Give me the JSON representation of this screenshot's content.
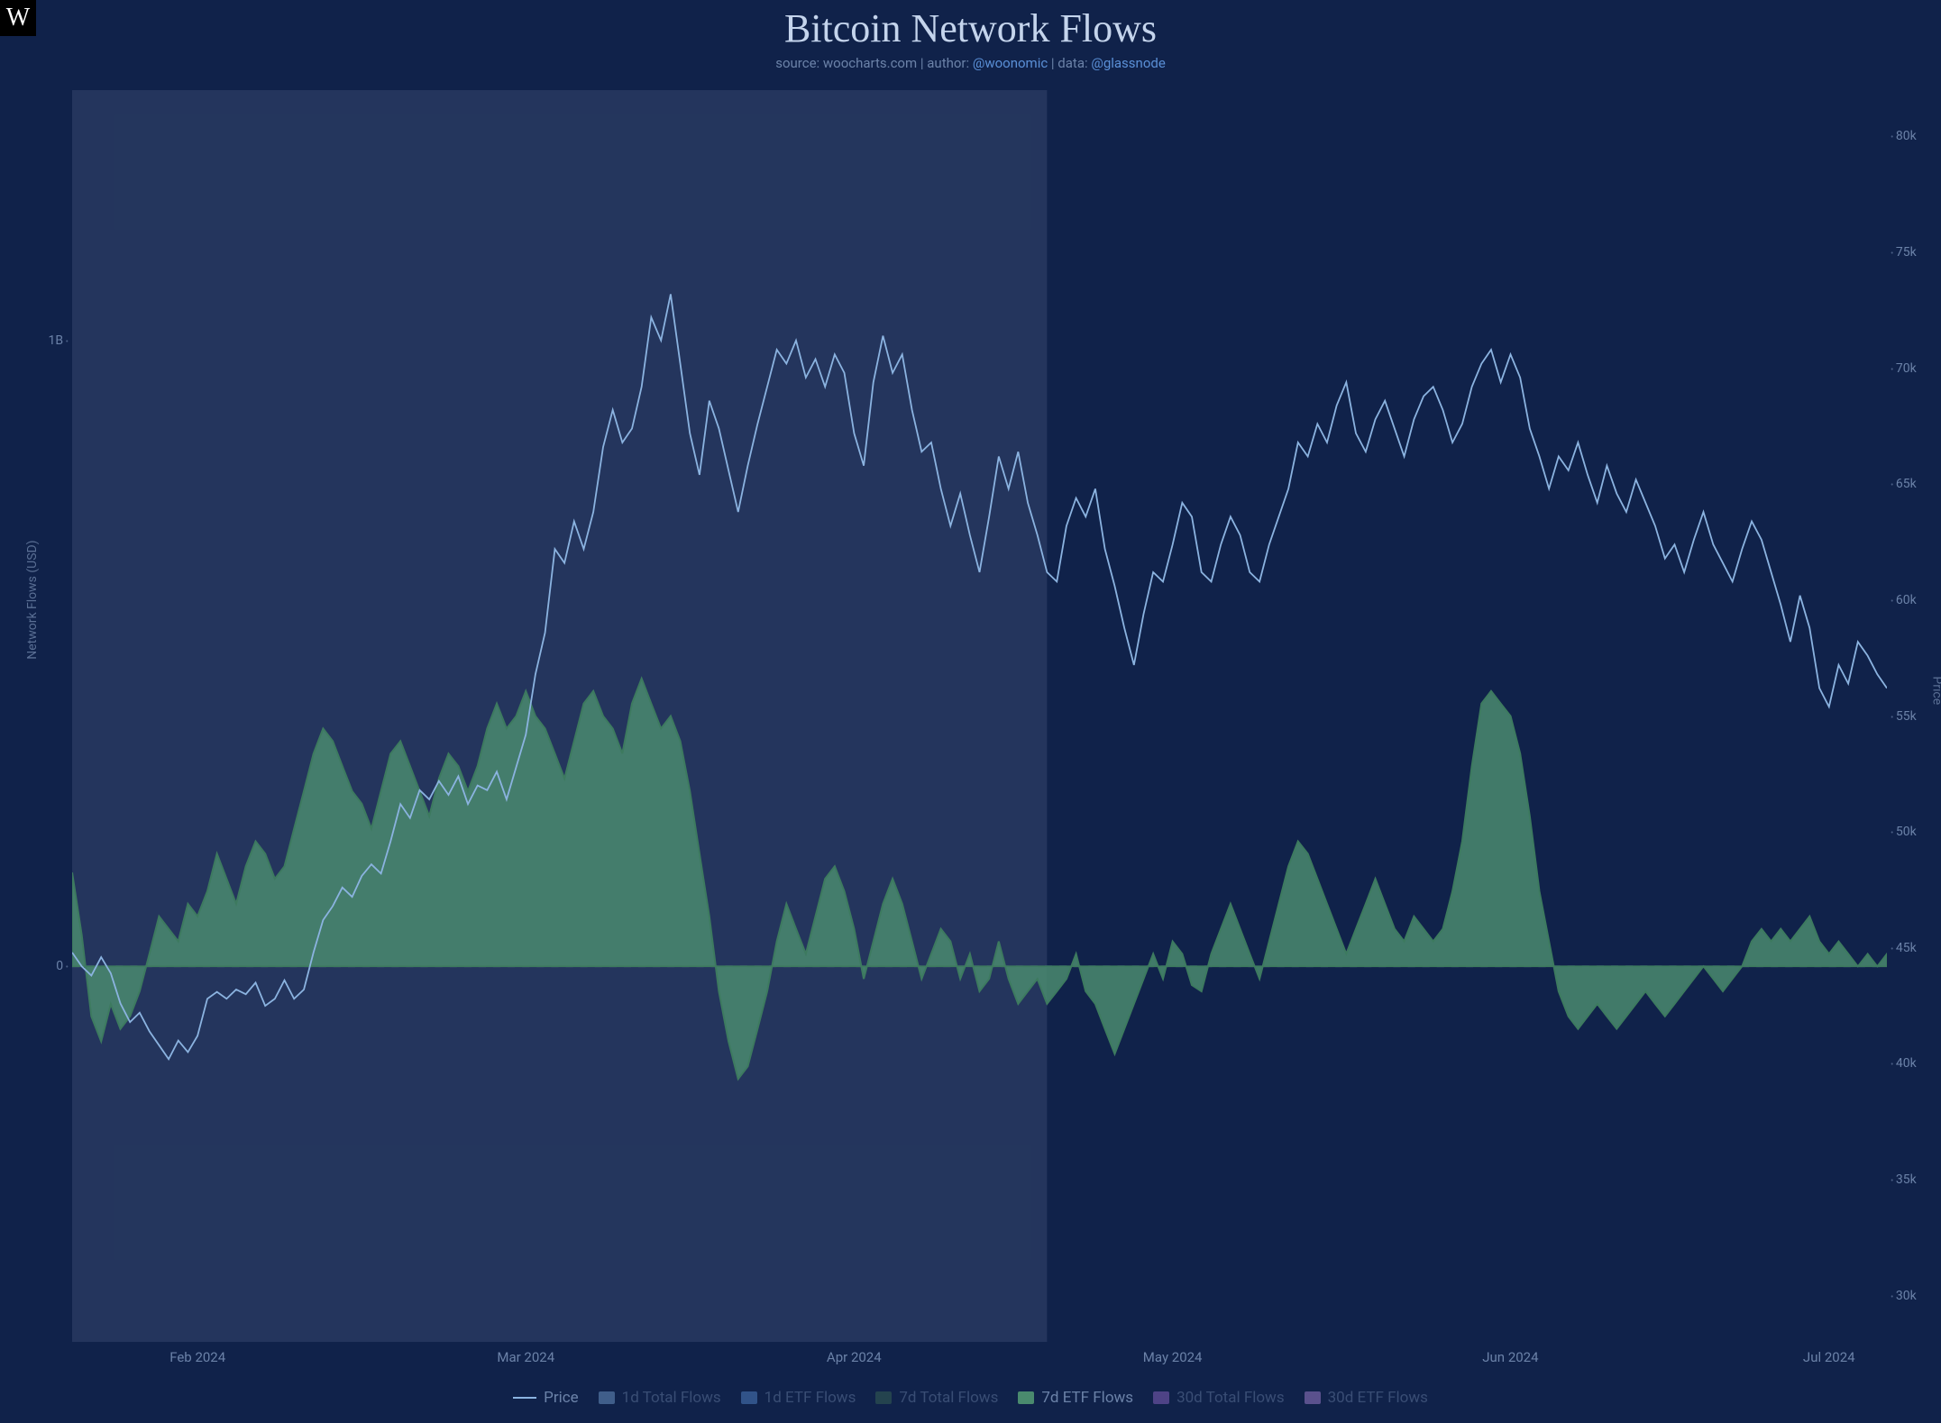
{
  "title": "Bitcoin Network Flows",
  "subtitle": {
    "source_label": "source: ",
    "source_value": "woocharts.com",
    "author_label": " | author: ",
    "author_value": "@woonomic",
    "data_label": " | data: ",
    "data_value": "@glassnode"
  },
  "logo_text": "W",
  "y_left_axis_label": "Network Flows (USD)",
  "y_right_axis_label": "Price",
  "colors": {
    "background": "#10224a",
    "selection_overlay": "rgba(180,200,230,0.12)",
    "price_line": "#8bb3e0",
    "area_fill": "#4a8a6e",
    "area_stroke": "#3d7a5f",
    "zero_line": "#5a6f94",
    "tick_text": "#6b82a8",
    "title_text": "#c4d4ec",
    "link": "#5a8fd6",
    "legend_dimmed": "#4a5f85",
    "purple": "#9a6dd0"
  },
  "typography": {
    "title_fontsize": 44,
    "subtitle_fontsize": 15,
    "tick_fontsize": 14,
    "legend_fontsize": 17,
    "title_family": "serif"
  },
  "selection": {
    "start_pct": 0.0,
    "end_pct": 50.5
  },
  "x_axis": {
    "ticks": [
      {
        "label": "Feb 2024",
        "pct": 6.5
      },
      {
        "label": "Mar 2024",
        "pct": 23.5
      },
      {
        "label": "Apr 2024",
        "pct": 40.5
      },
      {
        "label": "May 2024",
        "pct": 57.0
      },
      {
        "label": "Jun 2024",
        "pct": 74.5
      },
      {
        "label": "Jul 2024",
        "pct": 91.0
      }
    ]
  },
  "y_left": {
    "min": -600000000,
    "max": 1400000000,
    "ticks": [
      {
        "label": "0",
        "value": 0
      },
      {
        "label": "1B",
        "value": 1000000000
      }
    ]
  },
  "y_right": {
    "min": 28000,
    "max": 82000,
    "ticks": [
      {
        "label": "30k",
        "value": 30000
      },
      {
        "label": "35k",
        "value": 35000
      },
      {
        "label": "40k",
        "value": 40000
      },
      {
        "label": "45k",
        "value": 45000
      },
      {
        "label": "50k",
        "value": 50000
      },
      {
        "label": "55k",
        "value": 55000
      },
      {
        "label": "60k",
        "value": 60000
      },
      {
        "label": "65k",
        "value": 65000
      },
      {
        "label": "70k",
        "value": 70000
      },
      {
        "label": "75k",
        "value": 75000
      },
      {
        "label": "80k",
        "value": 80000
      }
    ]
  },
  "legend": [
    {
      "label": "Price",
      "kind": "line",
      "color": "#8bb3e0",
      "active": true
    },
    {
      "label": "1d Total Flows",
      "kind": "block",
      "color": "#7ba8d9",
      "active": false
    },
    {
      "label": "1d ETF Flows",
      "kind": "block",
      "color": "#5a8fd6",
      "active": false
    },
    {
      "label": "7d Total Flows",
      "kind": "block",
      "color": "#3d6b54",
      "active": false
    },
    {
      "label": "7d ETF Flows",
      "kind": "block",
      "color": "#4a8a6e",
      "active": true
    },
    {
      "label": "30d Total Flows",
      "kind": "block",
      "color": "#9a6dd0",
      "active": false
    },
    {
      "label": "30d ETF Flows",
      "kind": "block",
      "color": "#b48ae0",
      "active": false
    }
  ],
  "price_series": [
    [
      0.0,
      44800
    ],
    [
      0.5,
      44200
    ],
    [
      1.0,
      43800
    ],
    [
      1.5,
      44600
    ],
    [
      2.0,
      43900
    ],
    [
      2.5,
      42600
    ],
    [
      3.0,
      41800
    ],
    [
      3.5,
      42200
    ],
    [
      4.0,
      41400
    ],
    [
      4.5,
      40800
    ],
    [
      5.0,
      40200
    ],
    [
      5.5,
      41000
    ],
    [
      6.0,
      40500
    ],
    [
      6.5,
      41200
    ],
    [
      7.0,
      42800
    ],
    [
      7.5,
      43100
    ],
    [
      8.0,
      42800
    ],
    [
      8.5,
      43200
    ],
    [
      9.0,
      43000
    ],
    [
      9.5,
      43500
    ],
    [
      10.0,
      42500
    ],
    [
      10.5,
      42800
    ],
    [
      11.0,
      43600
    ],
    [
      11.5,
      42800
    ],
    [
      12.0,
      43200
    ],
    [
      12.5,
      44800
    ],
    [
      13.0,
      46200
    ],
    [
      13.5,
      46800
    ],
    [
      14.0,
      47600
    ],
    [
      14.5,
      47200
    ],
    [
      15.0,
      48100
    ],
    [
      15.5,
      48600
    ],
    [
      16.0,
      48200
    ],
    [
      16.5,
      49600
    ],
    [
      17.0,
      51200
    ],
    [
      17.5,
      50600
    ],
    [
      18.0,
      51800
    ],
    [
      18.5,
      51400
    ],
    [
      19.0,
      52200
    ],
    [
      19.5,
      51600
    ],
    [
      20.0,
      52400
    ],
    [
      20.5,
      51200
    ],
    [
      21.0,
      52000
    ],
    [
      21.5,
      51800
    ],
    [
      22.0,
      52600
    ],
    [
      22.5,
      51400
    ],
    [
      23.0,
      52800
    ],
    [
      23.5,
      54200
    ],
    [
      24.0,
      56800
    ],
    [
      24.5,
      58600
    ],
    [
      25.0,
      62200
    ],
    [
      25.5,
      61600
    ],
    [
      26.0,
      63400
    ],
    [
      26.5,
      62200
    ],
    [
      27.0,
      63800
    ],
    [
      27.5,
      66600
    ],
    [
      28.0,
      68200
    ],
    [
      28.5,
      66800
    ],
    [
      29.0,
      67400
    ],
    [
      29.5,
      69200
    ],
    [
      30.0,
      72200
    ],
    [
      30.5,
      71200
    ],
    [
      31.0,
      73200
    ],
    [
      31.5,
      70200
    ],
    [
      32.0,
      67200
    ],
    [
      32.5,
      65400
    ],
    [
      33.0,
      68600
    ],
    [
      33.5,
      67400
    ],
    [
      34.0,
      65600
    ],
    [
      34.5,
      63800
    ],
    [
      35.0,
      65800
    ],
    [
      35.5,
      67600
    ],
    [
      36.0,
      69200
    ],
    [
      36.5,
      70800
    ],
    [
      37.0,
      70200
    ],
    [
      37.5,
      71200
    ],
    [
      38.0,
      69600
    ],
    [
      38.5,
      70400
    ],
    [
      39.0,
      69200
    ],
    [
      39.5,
      70600
    ],
    [
      40.0,
      69800
    ],
    [
      40.5,
      67200
    ],
    [
      41.0,
      65800
    ],
    [
      41.5,
      69400
    ],
    [
      42.0,
      71400
    ],
    [
      42.5,
      69800
    ],
    [
      43.0,
      70600
    ],
    [
      43.5,
      68200
    ],
    [
      44.0,
      66400
    ],
    [
      44.5,
      66800
    ],
    [
      45.0,
      64800
    ],
    [
      45.5,
      63200
    ],
    [
      46.0,
      64600
    ],
    [
      46.5,
      62800
    ],
    [
      47.0,
      61200
    ],
    [
      47.5,
      63600
    ],
    [
      48.0,
      66200
    ],
    [
      48.5,
      64800
    ],
    [
      49.0,
      66400
    ],
    [
      49.5,
      64200
    ],
    [
      50.0,
      62800
    ],
    [
      50.5,
      61200
    ],
    [
      51.0,
      60800
    ],
    [
      51.5,
      63200
    ],
    [
      52.0,
      64400
    ],
    [
      52.5,
      63600
    ],
    [
      53.0,
      64800
    ],
    [
      53.5,
      62200
    ],
    [
      54.0,
      60600
    ],
    [
      54.5,
      58800
    ],
    [
      55.0,
      57200
    ],
    [
      55.5,
      59400
    ],
    [
      56.0,
      61200
    ],
    [
      56.5,
      60800
    ],
    [
      57.0,
      62400
    ],
    [
      57.5,
      64200
    ],
    [
      58.0,
      63600
    ],
    [
      58.5,
      61200
    ],
    [
      59.0,
      60800
    ],
    [
      59.5,
      62400
    ],
    [
      60.0,
      63600
    ],
    [
      60.5,
      62800
    ],
    [
      61.0,
      61200
    ],
    [
      61.5,
      60800
    ],
    [
      62.0,
      62400
    ],
    [
      62.5,
      63600
    ],
    [
      63.0,
      64800
    ],
    [
      63.5,
      66800
    ],
    [
      64.0,
      66200
    ],
    [
      64.5,
      67600
    ],
    [
      65.0,
      66800
    ],
    [
      65.5,
      68400
    ],
    [
      66.0,
      69400
    ],
    [
      66.5,
      67200
    ],
    [
      67.0,
      66400
    ],
    [
      67.5,
      67800
    ],
    [
      68.0,
      68600
    ],
    [
      68.5,
      67400
    ],
    [
      69.0,
      66200
    ],
    [
      69.5,
      67800
    ],
    [
      70.0,
      68800
    ],
    [
      70.5,
      69200
    ],
    [
      71.0,
      68200
    ],
    [
      71.5,
      66800
    ],
    [
      72.0,
      67600
    ],
    [
      72.5,
      69200
    ],
    [
      73.0,
      70200
    ],
    [
      73.5,
      70800
    ],
    [
      74.0,
      69400
    ],
    [
      74.5,
      70600
    ],
    [
      75.0,
      69600
    ],
    [
      75.5,
      67400
    ],
    [
      76.0,
      66200
    ],
    [
      76.5,
      64800
    ],
    [
      77.0,
      66200
    ],
    [
      77.5,
      65600
    ],
    [
      78.0,
      66800
    ],
    [
      78.5,
      65400
    ],
    [
      79.0,
      64200
    ],
    [
      79.5,
      65800
    ],
    [
      80.0,
      64600
    ],
    [
      80.5,
      63800
    ],
    [
      81.0,
      65200
    ],
    [
      81.5,
      64200
    ],
    [
      82.0,
      63200
    ],
    [
      82.5,
      61800
    ],
    [
      83.0,
      62400
    ],
    [
      83.5,
      61200
    ],
    [
      84.0,
      62600
    ],
    [
      84.5,
      63800
    ],
    [
      85.0,
      62400
    ],
    [
      85.5,
      61600
    ],
    [
      86.0,
      60800
    ],
    [
      86.5,
      62200
    ],
    [
      87.0,
      63400
    ],
    [
      87.5,
      62600
    ],
    [
      88.0,
      61200
    ],
    [
      88.5,
      59800
    ],
    [
      89.0,
      58200
    ],
    [
      89.5,
      60200
    ],
    [
      90.0,
      58800
    ],
    [
      90.5,
      56200
    ],
    [
      91.0,
      55400
    ],
    [
      91.5,
      57200
    ],
    [
      92.0,
      56400
    ],
    [
      92.5,
      58200
    ],
    [
      93.0,
      57600
    ],
    [
      93.5,
      56800
    ],
    [
      94.0,
      56200
    ]
  ],
  "flows_series": [
    [
      0.0,
      150000000
    ],
    [
      0.5,
      50000000
    ],
    [
      1.0,
      -80000000
    ],
    [
      1.5,
      -120000000
    ],
    [
      2.0,
      -60000000
    ],
    [
      2.5,
      -100000000
    ],
    [
      3.0,
      -80000000
    ],
    [
      3.5,
      -40000000
    ],
    [
      4.0,
      20000000
    ],
    [
      4.5,
      80000000
    ],
    [
      5.0,
      60000000
    ],
    [
      5.5,
      40000000
    ],
    [
      6.0,
      100000000
    ],
    [
      6.5,
      80000000
    ],
    [
      7.0,
      120000000
    ],
    [
      7.5,
      180000000
    ],
    [
      8.0,
      140000000
    ],
    [
      8.5,
      100000000
    ],
    [
      9.0,
      160000000
    ],
    [
      9.5,
      200000000
    ],
    [
      10.0,
      180000000
    ],
    [
      10.5,
      140000000
    ],
    [
      11.0,
      160000000
    ],
    [
      11.5,
      220000000
    ],
    [
      12.0,
      280000000
    ],
    [
      12.5,
      340000000
    ],
    [
      13.0,
      380000000
    ],
    [
      13.5,
      360000000
    ],
    [
      14.0,
      320000000
    ],
    [
      14.5,
      280000000
    ],
    [
      15.0,
      260000000
    ],
    [
      15.5,
      220000000
    ],
    [
      16.0,
      280000000
    ],
    [
      16.5,
      340000000
    ],
    [
      17.0,
      360000000
    ],
    [
      17.5,
      320000000
    ],
    [
      18.0,
      280000000
    ],
    [
      18.5,
      240000000
    ],
    [
      19.0,
      300000000
    ],
    [
      19.5,
      340000000
    ],
    [
      20.0,
      320000000
    ],
    [
      20.5,
      280000000
    ],
    [
      21.0,
      320000000
    ],
    [
      21.5,
      380000000
    ],
    [
      22.0,
      420000000
    ],
    [
      22.5,
      380000000
    ],
    [
      23.0,
      400000000
    ],
    [
      23.5,
      440000000
    ],
    [
      24.0,
      400000000
    ],
    [
      24.5,
      380000000
    ],
    [
      25.0,
      340000000
    ],
    [
      25.5,
      300000000
    ],
    [
      26.0,
      360000000
    ],
    [
      26.5,
      420000000
    ],
    [
      27.0,
      440000000
    ],
    [
      27.5,
      400000000
    ],
    [
      28.0,
      380000000
    ],
    [
      28.5,
      340000000
    ],
    [
      29.0,
      420000000
    ],
    [
      29.5,
      460000000
    ],
    [
      30.0,
      420000000
    ],
    [
      30.5,
      380000000
    ],
    [
      31.0,
      400000000
    ],
    [
      31.5,
      360000000
    ],
    [
      32.0,
      280000000
    ],
    [
      32.5,
      180000000
    ],
    [
      33.0,
      80000000
    ],
    [
      33.5,
      -40000000
    ],
    [
      34.0,
      -120000000
    ],
    [
      34.5,
      -180000000
    ],
    [
      35.0,
      -160000000
    ],
    [
      35.5,
      -100000000
    ],
    [
      36.0,
      -40000000
    ],
    [
      36.5,
      40000000
    ],
    [
      37.0,
      100000000
    ],
    [
      37.5,
      60000000
    ],
    [
      38.0,
      20000000
    ],
    [
      38.5,
      80000000
    ],
    [
      39.0,
      140000000
    ],
    [
      39.5,
      160000000
    ],
    [
      40.0,
      120000000
    ],
    [
      40.5,
      60000000
    ],
    [
      41.0,
      -20000000
    ],
    [
      41.5,
      40000000
    ],
    [
      42.0,
      100000000
    ],
    [
      42.5,
      140000000
    ],
    [
      43.0,
      100000000
    ],
    [
      43.5,
      40000000
    ],
    [
      44.0,
      -20000000
    ],
    [
      44.5,
      20000000
    ],
    [
      45.0,
      60000000
    ],
    [
      45.5,
      40000000
    ],
    [
      46.0,
      -20000000
    ],
    [
      46.5,
      20000000
    ],
    [
      47.0,
      -40000000
    ],
    [
      47.5,
      -20000000
    ],
    [
      48.0,
      40000000
    ],
    [
      48.5,
      -20000000
    ],
    [
      49.0,
      -60000000
    ],
    [
      49.5,
      -40000000
    ],
    [
      50.0,
      -20000000
    ],
    [
      50.5,
      -60000000
    ],
    [
      51.0,
      -40000000
    ],
    [
      51.5,
      -20000000
    ],
    [
      52.0,
      20000000
    ],
    [
      52.5,
      -40000000
    ],
    [
      53.0,
      -60000000
    ],
    [
      53.5,
      -100000000
    ],
    [
      54.0,
      -140000000
    ],
    [
      54.5,
      -100000000
    ],
    [
      55.0,
      -60000000
    ],
    [
      55.5,
      -20000000
    ],
    [
      56.0,
      20000000
    ],
    [
      56.5,
      -20000000
    ],
    [
      57.0,
      40000000
    ],
    [
      57.5,
      20000000
    ],
    [
      58.0,
      -30000000
    ],
    [
      58.5,
      -40000000
    ],
    [
      59.0,
      20000000
    ],
    [
      59.5,
      60000000
    ],
    [
      60.0,
      100000000
    ],
    [
      60.5,
      60000000
    ],
    [
      61.0,
      20000000
    ],
    [
      61.5,
      -20000000
    ],
    [
      62.0,
      40000000
    ],
    [
      62.5,
      100000000
    ],
    [
      63.0,
      160000000
    ],
    [
      63.5,
      200000000
    ],
    [
      64.0,
      180000000
    ],
    [
      64.5,
      140000000
    ],
    [
      65.0,
      100000000
    ],
    [
      65.5,
      60000000
    ],
    [
      66.0,
      20000000
    ],
    [
      66.5,
      60000000
    ],
    [
      67.0,
      100000000
    ],
    [
      67.5,
      140000000
    ],
    [
      68.0,
      100000000
    ],
    [
      68.5,
      60000000
    ],
    [
      69.0,
      40000000
    ],
    [
      69.5,
      80000000
    ],
    [
      70.0,
      60000000
    ],
    [
      70.5,
      40000000
    ],
    [
      71.0,
      60000000
    ],
    [
      71.5,
      120000000
    ],
    [
      72.0,
      200000000
    ],
    [
      72.5,
      320000000
    ],
    [
      73.0,
      420000000
    ],
    [
      73.5,
      440000000
    ],
    [
      74.0,
      420000000
    ],
    [
      74.5,
      400000000
    ],
    [
      75.0,
      340000000
    ],
    [
      75.5,
      240000000
    ],
    [
      76.0,
      120000000
    ],
    [
      76.5,
      40000000
    ],
    [
      77.0,
      -40000000
    ],
    [
      77.5,
      -80000000
    ],
    [
      78.0,
      -100000000
    ],
    [
      78.5,
      -80000000
    ],
    [
      79.0,
      -60000000
    ],
    [
      79.5,
      -80000000
    ],
    [
      80.0,
      -100000000
    ],
    [
      80.5,
      -80000000
    ],
    [
      81.0,
      -60000000
    ],
    [
      81.5,
      -40000000
    ],
    [
      82.0,
      -60000000
    ],
    [
      82.5,
      -80000000
    ],
    [
      83.0,
      -60000000
    ],
    [
      83.5,
      -40000000
    ],
    [
      84.0,
      -20000000
    ],
    [
      84.5,
      0
    ],
    [
      85.0,
      -20000000
    ],
    [
      85.5,
      -40000000
    ],
    [
      86.0,
      -20000000
    ],
    [
      86.5,
      0
    ],
    [
      87.0,
      40000000
    ],
    [
      87.5,
      60000000
    ],
    [
      88.0,
      40000000
    ],
    [
      88.5,
      60000000
    ],
    [
      89.0,
      40000000
    ],
    [
      89.5,
      60000000
    ],
    [
      90.0,
      80000000
    ],
    [
      90.5,
      40000000
    ],
    [
      91.0,
      20000000
    ],
    [
      91.5,
      40000000
    ],
    [
      92.0,
      20000000
    ],
    [
      92.5,
      0
    ],
    [
      93.0,
      20000000
    ],
    [
      93.5,
      0
    ],
    [
      94.0,
      20000000
    ]
  ]
}
